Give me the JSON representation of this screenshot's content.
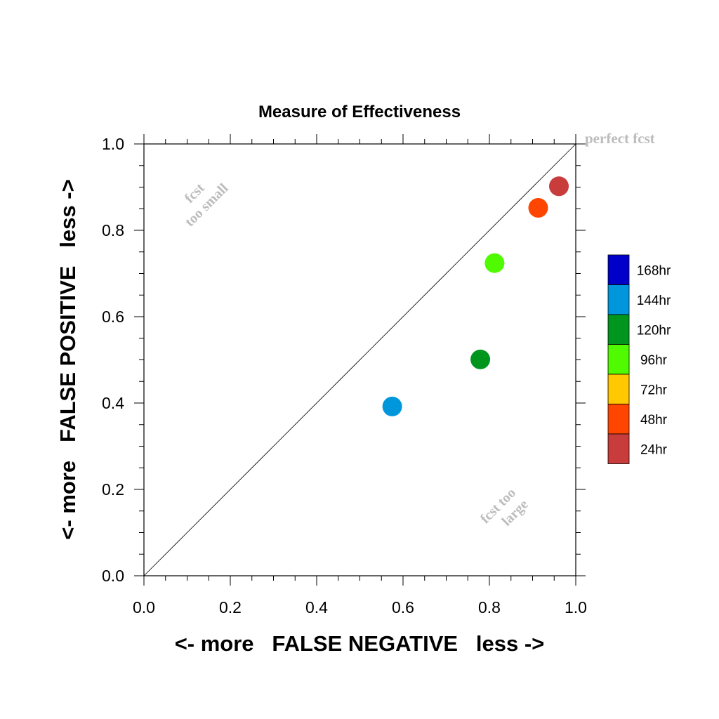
{
  "chart_data": {
    "type": "scatter",
    "title": "Measure of Effectiveness",
    "xlabel": "<- more   FALSE NEGATIVE   less ->",
    "ylabel": "<- more   FALSE POSITIVE   less ->",
    "xlim": [
      0.0,
      1.0
    ],
    "ylim": [
      0.0,
      1.0
    ],
    "x_ticks": [
      "0.0",
      "0.2",
      "0.4",
      "0.6",
      "0.8",
      "1.0"
    ],
    "y_ticks": [
      "0.0",
      "0.2",
      "0.4",
      "0.6",
      "0.8",
      "1.0"
    ],
    "grid": false,
    "reference_line": {
      "from": [
        0,
        0
      ],
      "to": [
        1,
        1
      ]
    },
    "annotations": {
      "perfect": "perfect fcst",
      "too_small_1": "fcst",
      "too_small_2": "too small",
      "too_large_1": "fcst too",
      "too_large_2": "large"
    },
    "legend": {
      "placement": "right",
      "entries": [
        {
          "label": "168hr",
          "color": "#0000c8"
        },
        {
          "label": "144hr",
          "color": "#0096dc"
        },
        {
          "label": "120hr",
          "color": "#00961e"
        },
        {
          "label": "96hr",
          "color": "#50fa00"
        },
        {
          "label": "72hr",
          "color": "#ffc800"
        },
        {
          "label": "48hr",
          "color": "#ff4600"
        },
        {
          "label": "24hr",
          "color": "#c83c3c"
        }
      ]
    },
    "points": [
      {
        "lead": "144hr",
        "x": 0.575,
        "y": 0.392,
        "color": "#0096dc"
      },
      {
        "lead": "120hr",
        "x": 0.779,
        "y": 0.501,
        "color": "#00961e"
      },
      {
        "lead": "96hr",
        "x": 0.812,
        "y": 0.724,
        "color": "#50fa00"
      },
      {
        "lead": "48hr",
        "x": 0.913,
        "y": 0.852,
        "color": "#ff4600"
      },
      {
        "lead": "24hr",
        "x": 0.961,
        "y": 0.902,
        "color": "#c83c3c"
      }
    ]
  }
}
